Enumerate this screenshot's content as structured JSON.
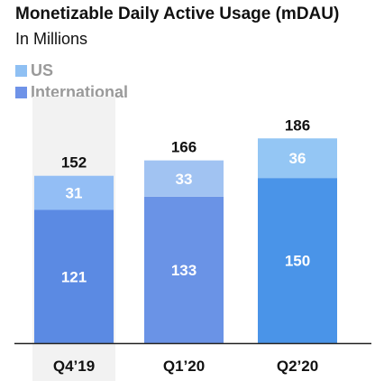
{
  "chart_data": {
    "type": "bar",
    "stacked": true,
    "title": "Monetizable Daily Active Usage (mDAU)",
    "subtitle": "In Millions",
    "categories": [
      "Q4’19",
      "Q1’20",
      "Q2’20"
    ],
    "totals": [
      152,
      166,
      186
    ],
    "series": [
      {
        "name": "International",
        "values": [
          121,
          133,
          150
        ]
      },
      {
        "name": "US",
        "values": [
          31,
          33,
          36
        ]
      }
    ],
    "legend_position": "top-left",
    "highlighted_category": "Q4’19",
    "grid": false,
    "colors": {
      "international": [
        "#5b8ae3",
        "#6a93e6",
        "#4a94e8"
      ],
      "us": [
        "#93bef5",
        "#a1c3f2",
        "#94c6f4"
      ],
      "legend_us": "#8fc0f3",
      "legend_international": "#6f93e8",
      "highlight_band": "#f2f2f2",
      "axis": "#222222"
    }
  }
}
